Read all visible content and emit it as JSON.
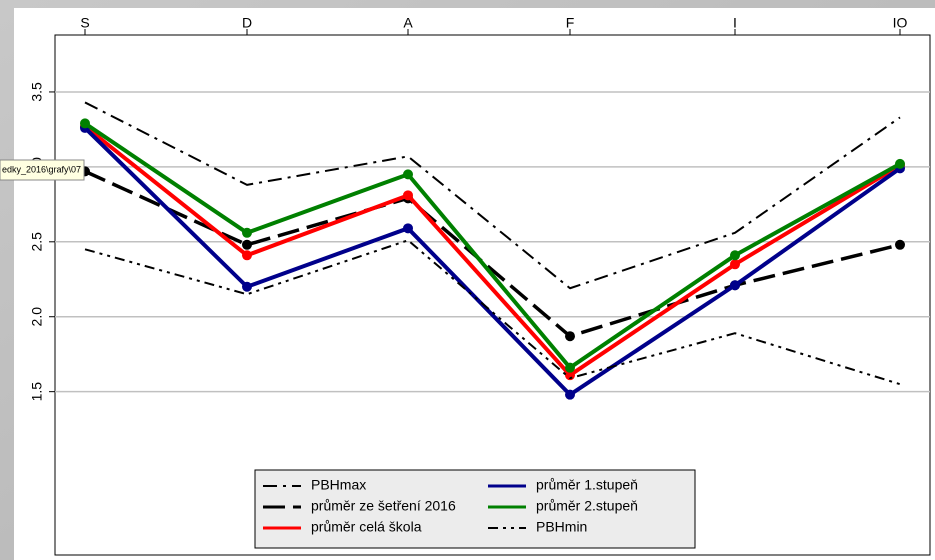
{
  "chart_data": {
    "type": "line",
    "categories": [
      "S",
      "D",
      "A",
      "F",
      "I",
      "IO"
    ],
    "ylim": [
      0.41,
      3.88
    ],
    "yticks": [
      {
        "value": 1.5,
        "label": "1.5"
      },
      {
        "value": 2,
        "label": "2.0"
      },
      {
        "value": 2.5,
        "label": "2.5"
      },
      {
        "value": 3,
        "label": "3.0"
      },
      {
        "value": 3.5,
        "label": "3.5"
      }
    ],
    "grid": true,
    "legend": "bottom",
    "tooltip": "edky_2016\\grafy\\07",
    "series": [
      {
        "name": "PBHmax",
        "color": "#000000",
        "style": "dashdot",
        "width": 2,
        "values": [
          3.43,
          2.88,
          3.07,
          2.19,
          2.56,
          3.33
        ]
      },
      {
        "name": "průměr ze šetření 2016",
        "color": "#000000",
        "style": "longdash",
        "width": 3.5,
        "values": [
          2.97,
          2.48,
          2.79,
          1.87,
          2.21,
          2.48
        ]
      },
      {
        "name": "průměr celá škola",
        "color": "#ff0000",
        "style": "solid",
        "width": 4,
        "values": [
          3.27,
          2.41,
          2.81,
          1.61,
          2.35,
          3.01
        ]
      },
      {
        "name": "průměr 1.stupeň",
        "color": "#00008b",
        "style": "solid",
        "width": 4,
        "values": [
          3.26,
          2.2,
          2.59,
          1.48,
          2.21,
          2.99
        ]
      },
      {
        "name": "průměr 2.stupeň",
        "color": "#008000",
        "style": "solid",
        "width": 4,
        "values": [
          3.29,
          2.56,
          2.95,
          1.66,
          2.41,
          3.02
        ]
      },
      {
        "name": "PBHmin",
        "color": "#000000",
        "style": "dashdotdot",
        "width": 2,
        "values": [
          2.45,
          2.15,
          2.51,
          1.59,
          1.89,
          1.55
        ]
      }
    ]
  }
}
